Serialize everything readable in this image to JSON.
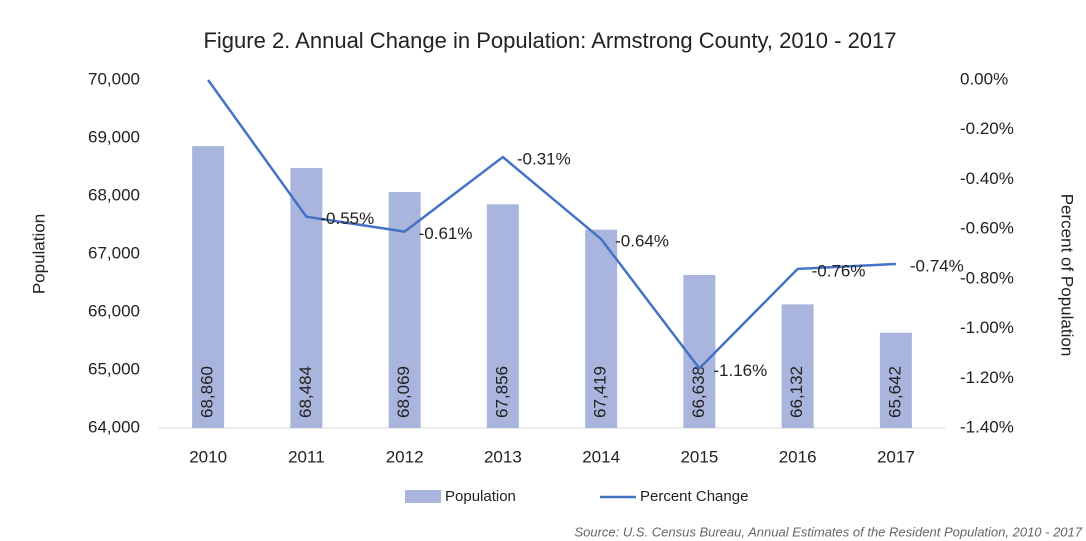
{
  "chart_data": {
    "type": "bar-line",
    "title": "Figure 2. Annual Change in Population: Armstrong County, 2010 - 2017",
    "source": "Source: U.S. Census Bureau, Annual Estimates of the Resident Population, 2010 - 2017",
    "ylabel": "Population",
    "y2label": "Percent of Population",
    "categories": [
      "2010",
      "2011",
      "2012",
      "2013",
      "2014",
      "2015",
      "2016",
      "2017"
    ],
    "series": [
      {
        "name": "Population",
        "type": "bar",
        "color": "#a9b5dc",
        "values": [
          68860,
          68484,
          68069,
          67856,
          67419,
          66638,
          66132,
          65642
        ],
        "value_labels": [
          "68,860",
          "68,484",
          "68,069",
          "67,856",
          "67,419",
          "66,638",
          "66,132",
          "65,642"
        ]
      },
      {
        "name": "Percent Change",
        "type": "line",
        "axis": "y2",
        "color": "#4472c4",
        "values": [
          0,
          -0.55,
          -0.61,
          -0.31,
          -0.64,
          -1.16,
          -0.76,
          -0.74
        ],
        "value_labels": [
          null,
          "-0.55%",
          "-0.61%",
          "-0.31%",
          "-0.64%",
          "-1.16%",
          "-0.76%",
          "-0.74%"
        ]
      }
    ],
    "ylim": [
      64000,
      70000
    ],
    "yticks": [
      {
        "value": 64000,
        "label": "64,000"
      },
      {
        "value": 65000,
        "label": "65,000"
      },
      {
        "value": 66000,
        "label": "66,000"
      },
      {
        "value": 67000,
        "label": "67,000"
      },
      {
        "value": 68000,
        "label": "68,000"
      },
      {
        "value": 69000,
        "label": "69,000"
      },
      {
        "value": 70000,
        "label": "70,000"
      }
    ],
    "y2lim": [
      -1.4,
      0
    ],
    "y2ticks": [
      {
        "value": -1.4,
        "label": "-1.40%"
      },
      {
        "value": -1.2,
        "label": "-1.20%"
      },
      {
        "value": -1.0,
        "label": "-1.00%"
      },
      {
        "value": -0.8,
        "label": "-0.80%"
      },
      {
        "value": -0.6,
        "label": "-0.60%"
      },
      {
        "value": -0.4,
        "label": "-0.40%"
      },
      {
        "value": -0.2,
        "label": "-0.20%"
      },
      {
        "value": 0,
        "label": "0.00%"
      }
    ],
    "legend": "bottom"
  }
}
